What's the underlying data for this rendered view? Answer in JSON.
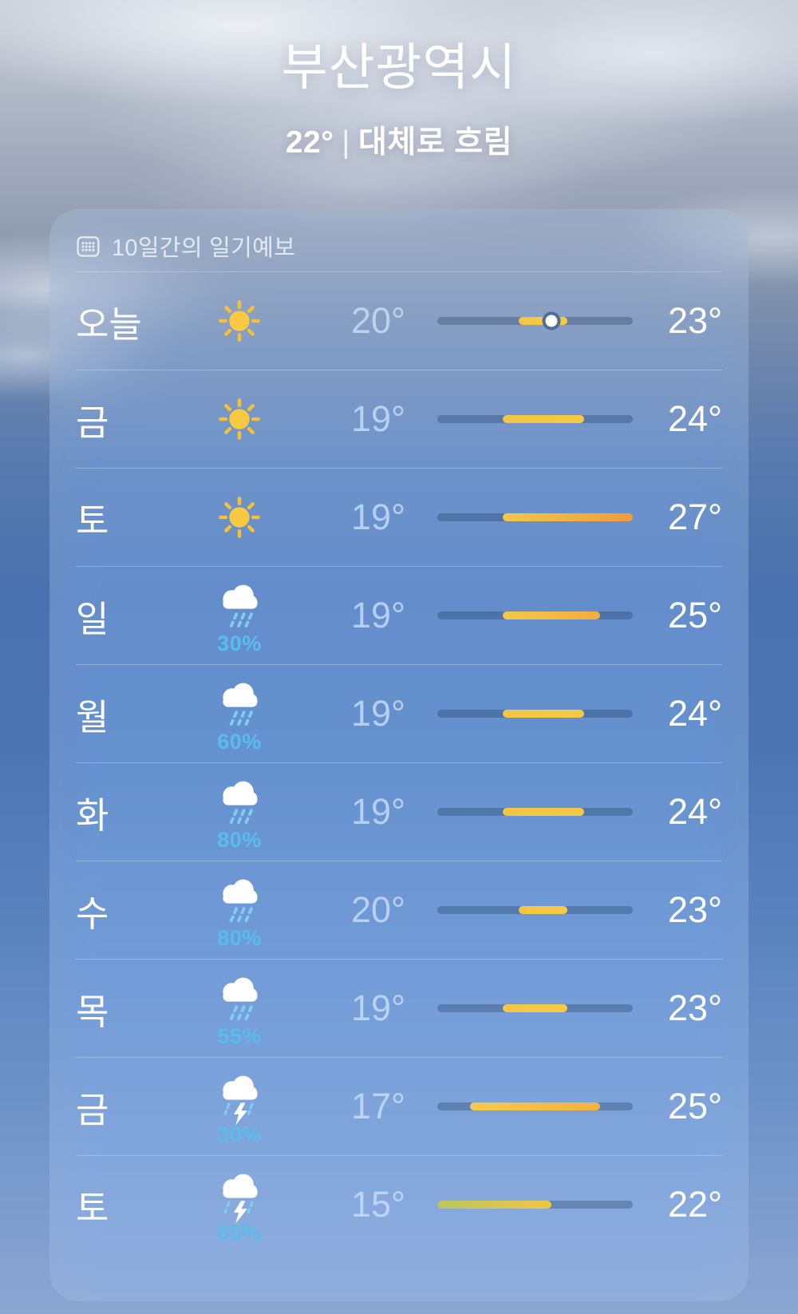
{
  "header": {
    "city": "부산광역시",
    "current_temp": "22°",
    "divider": "|",
    "condition": "대체로 흐림"
  },
  "forecast_card": {
    "title": "10일간의 일기예보",
    "title_icon": "calendar-icon",
    "temp_scale": {
      "min": 15,
      "max": 27
    },
    "colors": {
      "track": "rgba(28,50,82,0.30)",
      "precip_text": "#59bdec",
      "low_text": "rgba(203,223,249,0.8)",
      "high_text": "#ffffff",
      "yellow": "#f5c845",
      "orange": "#ef9d3a",
      "green": "#b9c75e"
    },
    "rows": [
      {
        "day": "오늘",
        "icon": "sun",
        "precip": null,
        "low": 20,
        "high": 23,
        "low_label": "20°",
        "high_label": "23°",
        "bar": {
          "start_pct": 41.7,
          "end_pct": 66.7,
          "dot_pct": 58.3,
          "colors": [
            "#f4c645",
            "#f6ca45"
          ]
        }
      },
      {
        "day": "금",
        "icon": "sun",
        "precip": null,
        "low": 19,
        "high": 24,
        "low_label": "19°",
        "high_label": "24°",
        "bar": {
          "start_pct": 33.3,
          "end_pct": 75.0,
          "dot_pct": null,
          "colors": [
            "#f4c645",
            "#f5c945"
          ]
        }
      },
      {
        "day": "토",
        "icon": "sun",
        "precip": null,
        "low": 19,
        "high": 27,
        "low_label": "19°",
        "high_label": "27°",
        "bar": {
          "start_pct": 33.3,
          "end_pct": 100.0,
          "dot_pct": null,
          "colors": [
            "#f4c74a",
            "#ef9d3a"
          ]
        }
      },
      {
        "day": "일",
        "icon": "rain",
        "precip": "30%",
        "low": 19,
        "high": 25,
        "low_label": "19°",
        "high_label": "25°",
        "bar": {
          "start_pct": 33.3,
          "end_pct": 83.3,
          "dot_pct": null,
          "colors": [
            "#f4c74a",
            "#f1ad40"
          ]
        }
      },
      {
        "day": "월",
        "icon": "rain",
        "precip": "60%",
        "low": 19,
        "high": 24,
        "low_label": "19°",
        "high_label": "24°",
        "bar": {
          "start_pct": 33.3,
          "end_pct": 75.0,
          "dot_pct": null,
          "colors": [
            "#f4c645",
            "#f5c945"
          ]
        }
      },
      {
        "day": "화",
        "icon": "rain",
        "precip": "80%",
        "low": 19,
        "high": 24,
        "low_label": "19°",
        "high_label": "24°",
        "bar": {
          "start_pct": 33.3,
          "end_pct": 75.0,
          "dot_pct": null,
          "colors": [
            "#f4c645",
            "#f5c945"
          ]
        }
      },
      {
        "day": "수",
        "icon": "rain",
        "precip": "80%",
        "low": 20,
        "high": 23,
        "low_label": "20°",
        "high_label": "23°",
        "bar": {
          "start_pct": 41.7,
          "end_pct": 66.7,
          "dot_pct": null,
          "colors": [
            "#f4c645",
            "#f6ca45"
          ]
        }
      },
      {
        "day": "목",
        "icon": "rain",
        "precip": "55%",
        "low": 19,
        "high": 23,
        "low_label": "19°",
        "high_label": "23°",
        "bar": {
          "start_pct": 33.3,
          "end_pct": 66.7,
          "dot_pct": null,
          "colors": [
            "#f4c645",
            "#f6ca45"
          ]
        }
      },
      {
        "day": "금",
        "icon": "storm",
        "precip": "30%",
        "low": 17,
        "high": 25,
        "low_label": "17°",
        "high_label": "25°",
        "bar": {
          "start_pct": 16.7,
          "end_pct": 83.3,
          "dot_pct": null,
          "colors": [
            "#f5ca4e",
            "#f2b243"
          ]
        }
      },
      {
        "day": "토",
        "icon": "storm",
        "precip": "65%",
        "low": 15,
        "high": 22,
        "low_label": "15°",
        "high_label": "22°",
        "bar": {
          "start_pct": 0.0,
          "end_pct": 58.3,
          "dot_pct": null,
          "colors": [
            "#b9c75e",
            "#f0c646"
          ]
        }
      }
    ]
  }
}
